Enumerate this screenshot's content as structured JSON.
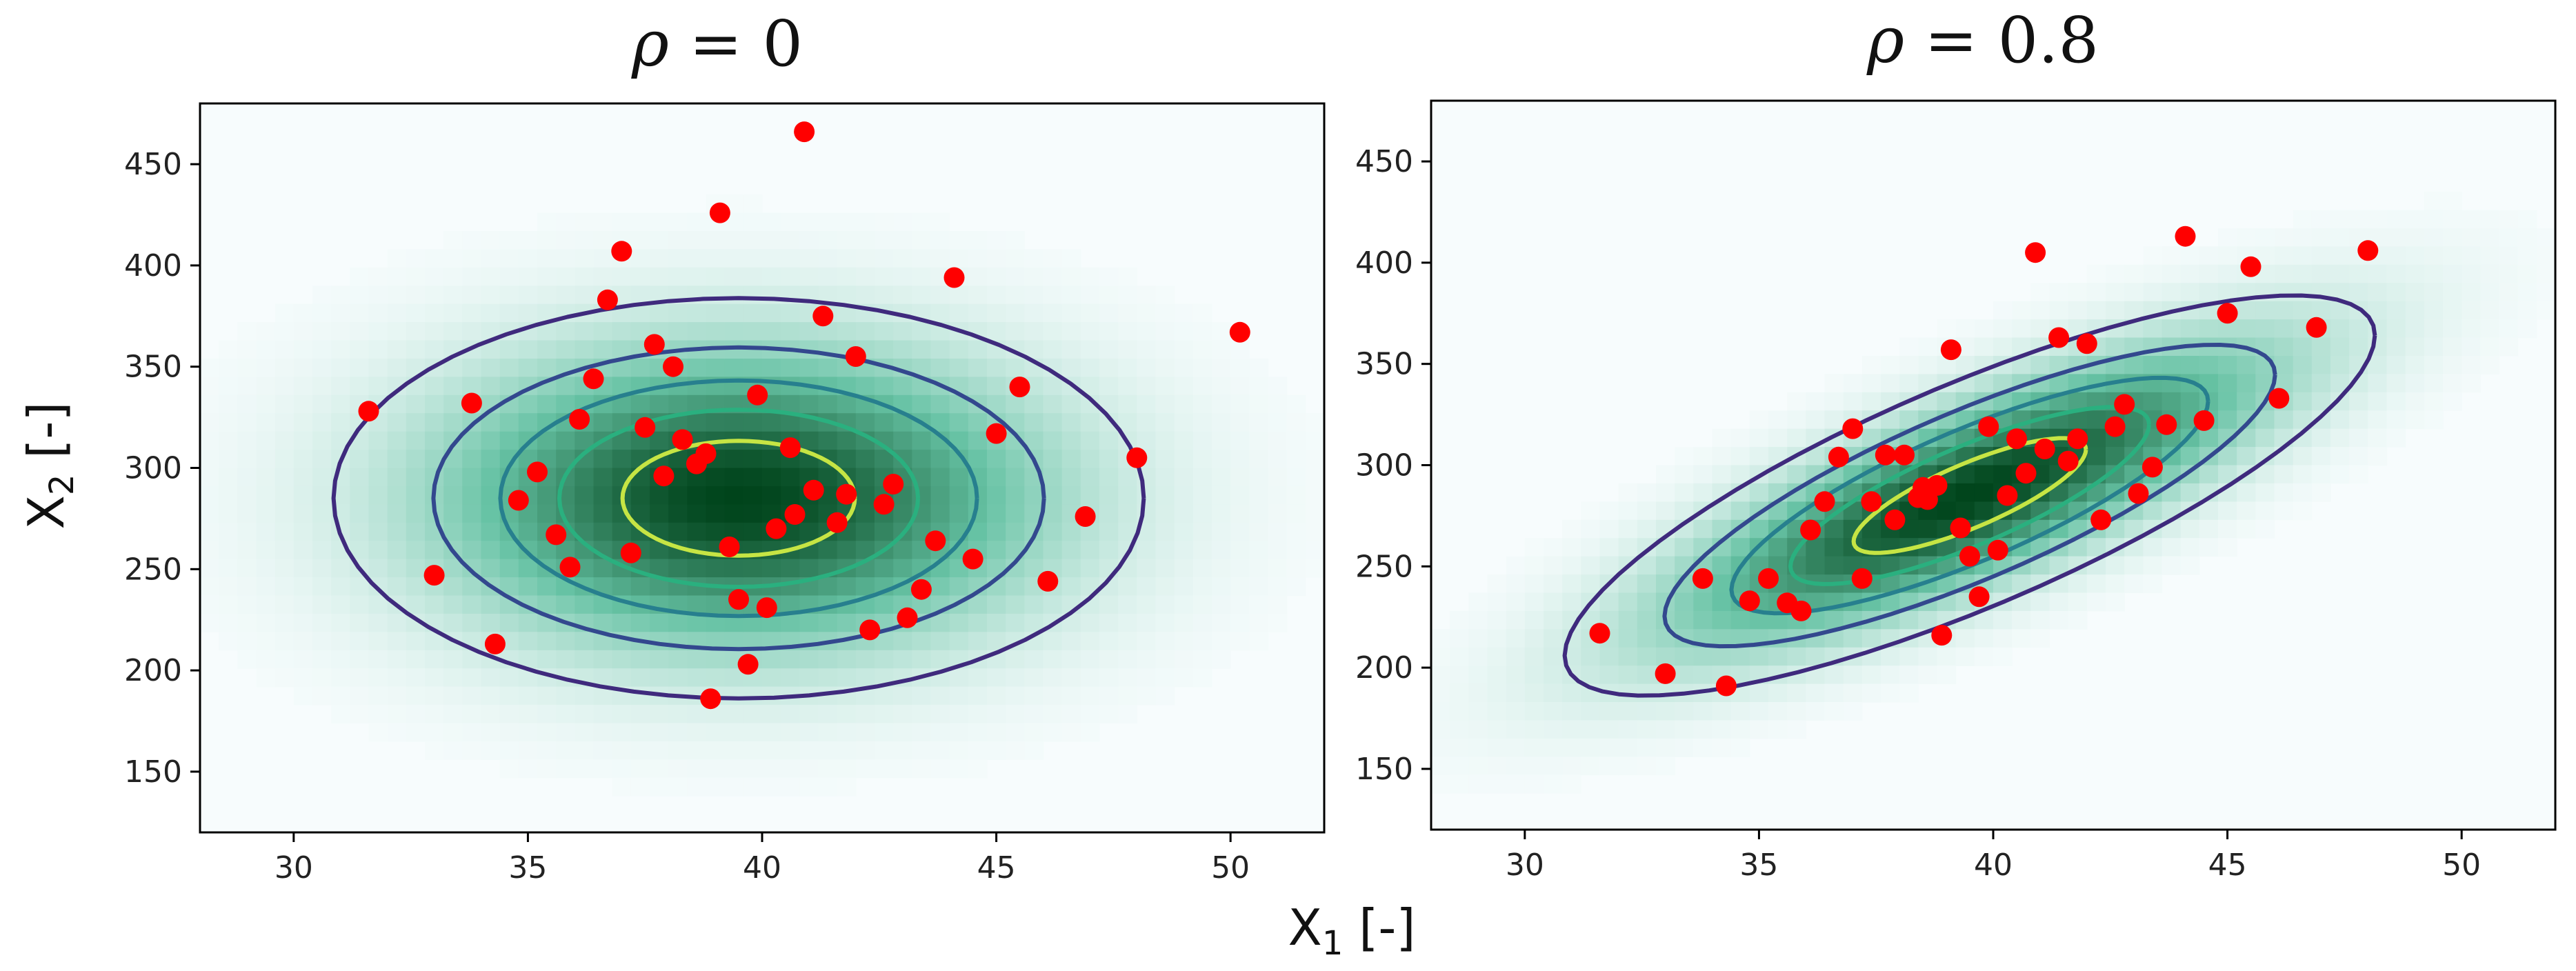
{
  "chart_data": [
    {
      "type": "scatter",
      "title": "ρ = 0",
      "title_symbol": "ρ",
      "title_rest": " = 0",
      "rho": 0,
      "xlim": [
        28,
        52
      ],
      "ylim": [
        120,
        480
      ],
      "xticks": [
        30,
        35,
        40,
        45,
        50
      ],
      "yticks": [
        150,
        200,
        250,
        300,
        350,
        400,
        450
      ],
      "density_center": [
        39.5,
        285
      ],
      "density_sd": [
        4.2,
        48
      ],
      "contour_levels": [
        0.12,
        0.3,
        0.48,
        0.66,
        0.84
      ],
      "points": [
        [
          31.6,
          328
        ],
        [
          33.0,
          247
        ],
        [
          33.8,
          332
        ],
        [
          34.3,
          213
        ],
        [
          34.8,
          284
        ],
        [
          35.2,
          298
        ],
        [
          35.6,
          267
        ],
        [
          35.9,
          251
        ],
        [
          36.1,
          324
        ],
        [
          36.4,
          344
        ],
        [
          36.7,
          383
        ],
        [
          37.0,
          407
        ],
        [
          37.2,
          258
        ],
        [
          37.5,
          320
        ],
        [
          37.7,
          361
        ],
        [
          37.9,
          296
        ],
        [
          38.1,
          350
        ],
        [
          38.3,
          314
        ],
        [
          38.6,
          302
        ],
        [
          38.8,
          307
        ],
        [
          38.9,
          186
        ],
        [
          39.1,
          426
        ],
        [
          39.3,
          261
        ],
        [
          39.5,
          235
        ],
        [
          39.7,
          203
        ],
        [
          39.9,
          336
        ],
        [
          40.1,
          231
        ],
        [
          40.3,
          270
        ],
        [
          40.6,
          310
        ],
        [
          40.7,
          277
        ],
        [
          40.9,
          466
        ],
        [
          41.1,
          289
        ],
        [
          41.3,
          375
        ],
        [
          41.6,
          273
        ],
        [
          41.8,
          287
        ],
        [
          42.0,
          355
        ],
        [
          42.3,
          220
        ],
        [
          42.6,
          282
        ],
        [
          42.8,
          292
        ],
        [
          43.1,
          226
        ],
        [
          43.4,
          240
        ],
        [
          43.7,
          264
        ],
        [
          44.1,
          394
        ],
        [
          44.5,
          255
        ],
        [
          45.0,
          317
        ],
        [
          45.5,
          340
        ],
        [
          46.1,
          244
        ],
        [
          46.9,
          276
        ],
        [
          48.0,
          305
        ],
        [
          50.2,
          367
        ]
      ]
    },
    {
      "type": "scatter",
      "title": "ρ = 0.8",
      "title_symbol": "ρ",
      "title_rest": " = 0.8",
      "rho": 0.8,
      "xlim": [
        28,
        52
      ],
      "ylim": [
        120,
        480
      ],
      "xticks": [
        30,
        35,
        40,
        45,
        50
      ],
      "yticks": [
        150,
        200,
        250,
        300,
        350,
        400,
        450
      ],
      "density_center": [
        39.5,
        285
      ],
      "density_sd": [
        4.2,
        48
      ],
      "contour_levels": [
        0.12,
        0.3,
        0.48,
        0.66,
        0.84
      ],
      "points": [
        [
          31.6,
          217
        ],
        [
          33.0,
          197
        ],
        [
          33.8,
          244
        ],
        [
          34.3,
          191
        ],
        [
          34.8,
          233
        ],
        [
          35.2,
          244
        ],
        [
          35.6,
          232
        ],
        [
          35.9,
          228
        ],
        [
          36.1,
          268
        ],
        [
          36.4,
          282
        ],
        [
          36.7,
          304
        ],
        [
          37.0,
          318
        ],
        [
          37.2,
          244
        ],
        [
          37.4,
          282
        ],
        [
          37.7,
          305
        ],
        [
          37.9,
          273
        ],
        [
          38.1,
          305
        ],
        [
          38.4,
          284
        ],
        [
          38.5,
          289
        ],
        [
          38.6,
          283
        ],
        [
          38.8,
          290
        ],
        [
          38.9,
          216
        ],
        [
          39.1,
          357
        ],
        [
          39.3,
          269
        ],
        [
          39.5,
          255
        ],
        [
          39.7,
          235
        ],
        [
          39.9,
          319
        ],
        [
          40.1,
          258
        ],
        [
          40.3,
          285
        ],
        [
          40.5,
          313
        ],
        [
          40.7,
          296
        ],
        [
          40.9,
          405
        ],
        [
          41.1,
          308
        ],
        [
          41.4,
          363
        ],
        [
          41.6,
          302
        ],
        [
          41.8,
          313
        ],
        [
          42.0,
          360
        ],
        [
          42.3,
          273
        ],
        [
          42.6,
          319
        ],
        [
          42.8,
          330
        ],
        [
          43.1,
          286
        ],
        [
          43.4,
          299
        ],
        [
          43.7,
          320
        ],
        [
          44.1,
          413
        ],
        [
          44.5,
          322
        ],
        [
          45.0,
          375
        ],
        [
          45.5,
          398
        ],
        [
          46.1,
          333
        ],
        [
          46.9,
          368
        ],
        [
          48.0,
          406
        ]
      ]
    }
  ],
  "shared_xlabel_main": "X",
  "shared_xlabel_sub": "1",
  "shared_xlabel_rest": " [-]",
  "shared_ylabel_main": "X",
  "shared_ylabel_sub": "2",
  "shared_ylabel_rest": " [-]",
  "colors": {
    "point": "#ff0000",
    "density_low": "#f7fcfd",
    "density_high": "#00441b",
    "contours": [
      "#3f2a7d",
      "#33488e",
      "#277f8e",
      "#2ab07f",
      "#c6e544"
    ]
  }
}
